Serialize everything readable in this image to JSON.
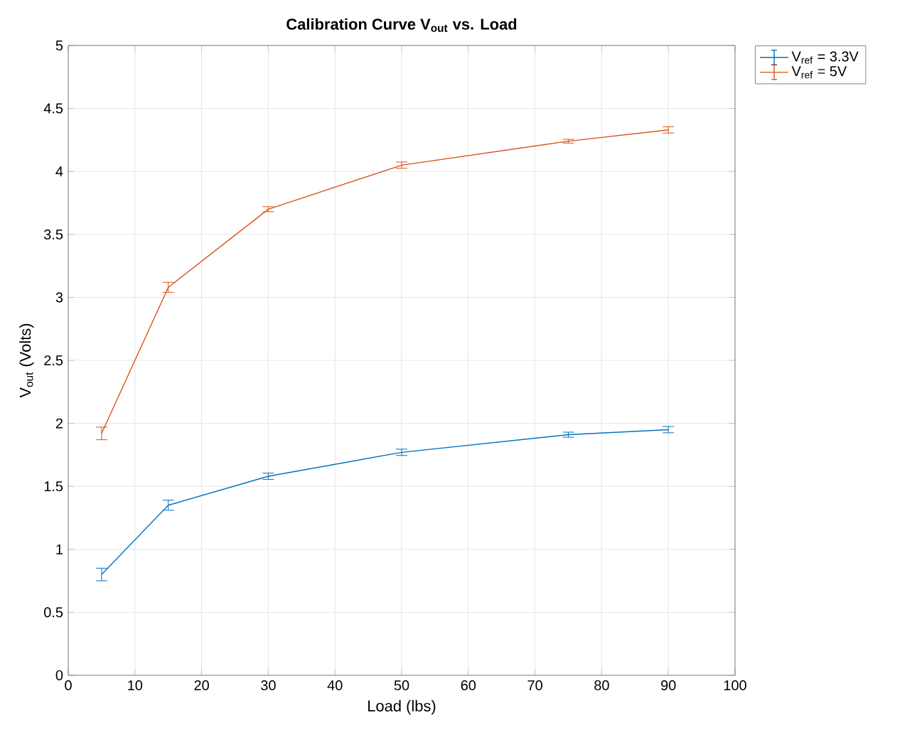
{
  "chart_data": {
    "type": "line",
    "title": "Calibration Curve V$_{out}$ vs. Load",
    "xlabel": "Load (lbs)",
    "ylabel": "V$_{out}$ (Volts)",
    "x": [
      5,
      15,
      30,
      50,
      75,
      90
    ],
    "series": [
      {
        "name": "V$_{ref}$ = 3.3V",
        "color": "#0072bd",
        "values": [
          0.8,
          1.35,
          1.58,
          1.77,
          1.91,
          1.95
        ],
        "errors": [
          0.05,
          0.04,
          0.025,
          0.025,
          0.02,
          0.025
        ]
      },
      {
        "name": "V$_{ref}$ = 5V",
        "color": "#d95319",
        "values": [
          1.92,
          3.08,
          3.7,
          4.05,
          4.24,
          4.33
        ],
        "errors": [
          0.05,
          0.04,
          0.02,
          0.025,
          0.015,
          0.025
        ]
      }
    ],
    "xlim": [
      0,
      100
    ],
    "xticks": [
      0,
      10,
      20,
      30,
      40,
      50,
      60,
      70,
      80,
      90,
      100
    ],
    "ylim": [
      0,
      5
    ],
    "yticks": [
      0,
      0.5,
      1,
      1.5,
      2,
      2.5,
      3,
      3.5,
      4,
      4.5,
      5
    ],
    "grid": true,
    "legend": "top right",
    "marker": "none",
    "line_style": "solid"
  }
}
